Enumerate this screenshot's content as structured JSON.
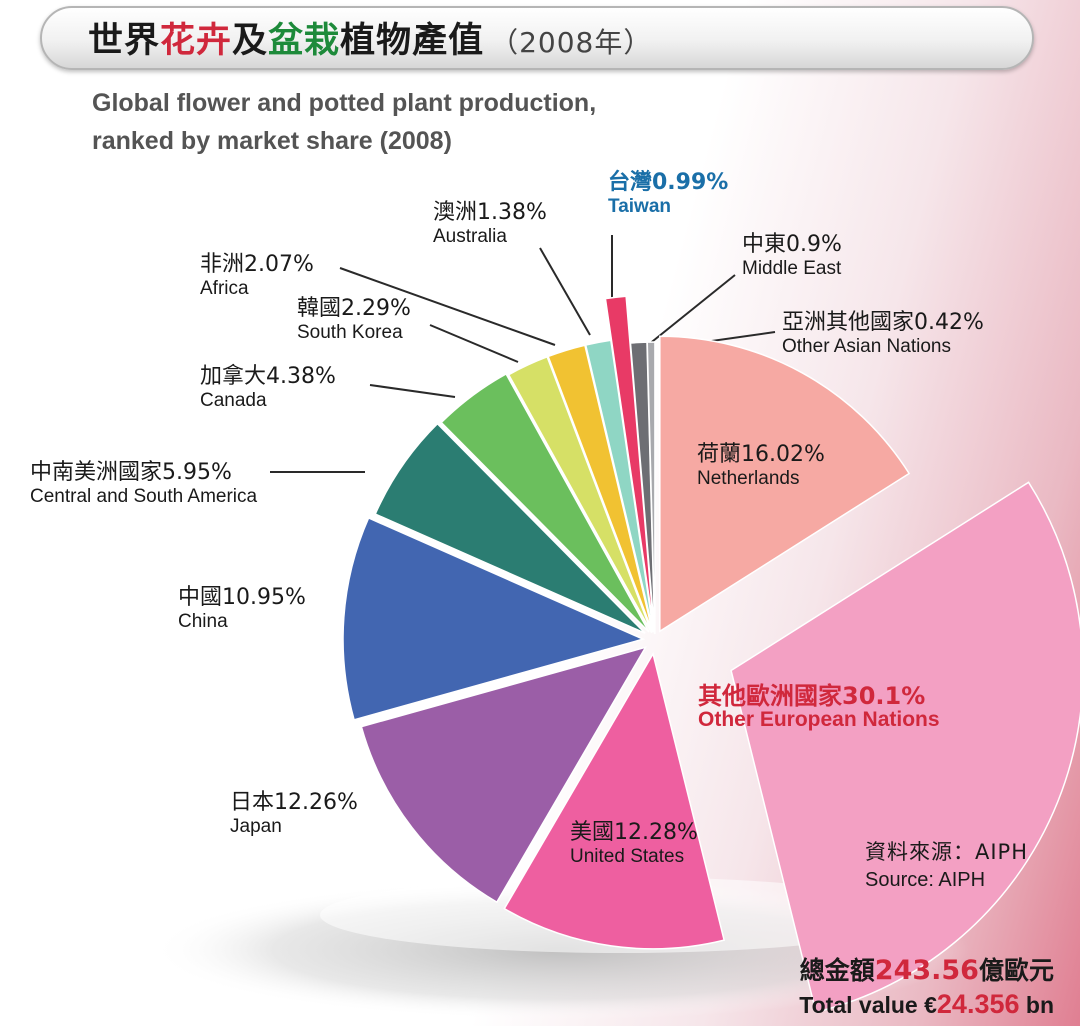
{
  "header": {
    "title_part1": "世界",
    "title_part2": "花卉",
    "title_part3": "及",
    "title_part4": "盆栽",
    "title_part5": "植物產值",
    "title_year": "（2008年）",
    "subtitle_line1": "Global flower and potted plant production,",
    "subtitle_line2": "ranked by market share (2008)"
  },
  "chart_data": {
    "type": "pie",
    "title": "Global flower and potted plant production, ranked by market share (2008)",
    "unit": "%",
    "slices": [
      {
        "key": "netherlands",
        "label_zh": "荷蘭",
        "label_en": "Netherlands",
        "value": 16.02,
        "value_text": "16.02%",
        "color": "#f6a9a3"
      },
      {
        "key": "other_europe",
        "label_zh": "其他歐洲國家",
        "label_en": "Other European Nations",
        "value": 30.1,
        "value_text": "30.1%",
        "color": "#f3a0c3"
      },
      {
        "key": "usa",
        "label_zh": "美國",
        "label_en": "United States",
        "value": 12.28,
        "value_text": "12.28%",
        "color": "#ee5fa0"
      },
      {
        "key": "japan",
        "label_zh": "日本",
        "label_en": "Japan",
        "value": 12.26,
        "value_text": "12.26%",
        "color": "#9b5ea7"
      },
      {
        "key": "china",
        "label_zh": "中國",
        "label_en": "China",
        "value": 10.95,
        "value_text": "10.95%",
        "color": "#4266b1"
      },
      {
        "key": "csamerica",
        "label_zh": "中南美洲國家",
        "label_en": "Central and South America",
        "value": 5.95,
        "value_text": "5.95%",
        "color": "#2b7d72"
      },
      {
        "key": "canada",
        "label_zh": "加拿大",
        "label_en": "Canada",
        "value": 4.38,
        "value_text": "4.38%",
        "color": "#6bbf5d"
      },
      {
        "key": "korea",
        "label_zh": "韓國",
        "label_en": "South Korea",
        "value": 2.29,
        "value_text": "2.29%",
        "color": "#d6e066"
      },
      {
        "key": "africa",
        "label_zh": "非洲",
        "label_en": "Africa",
        "value": 2.07,
        "value_text": "2.07%",
        "color": "#f1c232"
      },
      {
        "key": "australia",
        "label_zh": "澳洲",
        "label_en": "Australia",
        "value": 1.38,
        "value_text": "1.38%",
        "color": "#8fd6c4"
      },
      {
        "key": "taiwan",
        "label_zh": "台灣",
        "label_en": "Taiwan",
        "value": 0.99,
        "value_text": "0.99%",
        "color": "#e83a66"
      },
      {
        "key": "middle_east",
        "label_zh": "中東",
        "label_en": "Middle East",
        "value": 0.9,
        "value_text": "0.9%",
        "color": "#6d6e73"
      },
      {
        "key": "other_asia",
        "label_zh": "亞洲其他國家",
        "label_en": "Other Asian Nations",
        "value": 0.42,
        "value_text": "0.42%",
        "color": "#a8a9ad"
      }
    ]
  },
  "source": {
    "label_zh": "資料來源：AIPH",
    "label_en": "Source: AIPH"
  },
  "total": {
    "prefix_zh": "總金額",
    "value_zh": "243.56",
    "suffix_zh": "億歐元",
    "prefix_en": "Total value €",
    "value_en": "24.356",
    "suffix_en": " bn"
  }
}
